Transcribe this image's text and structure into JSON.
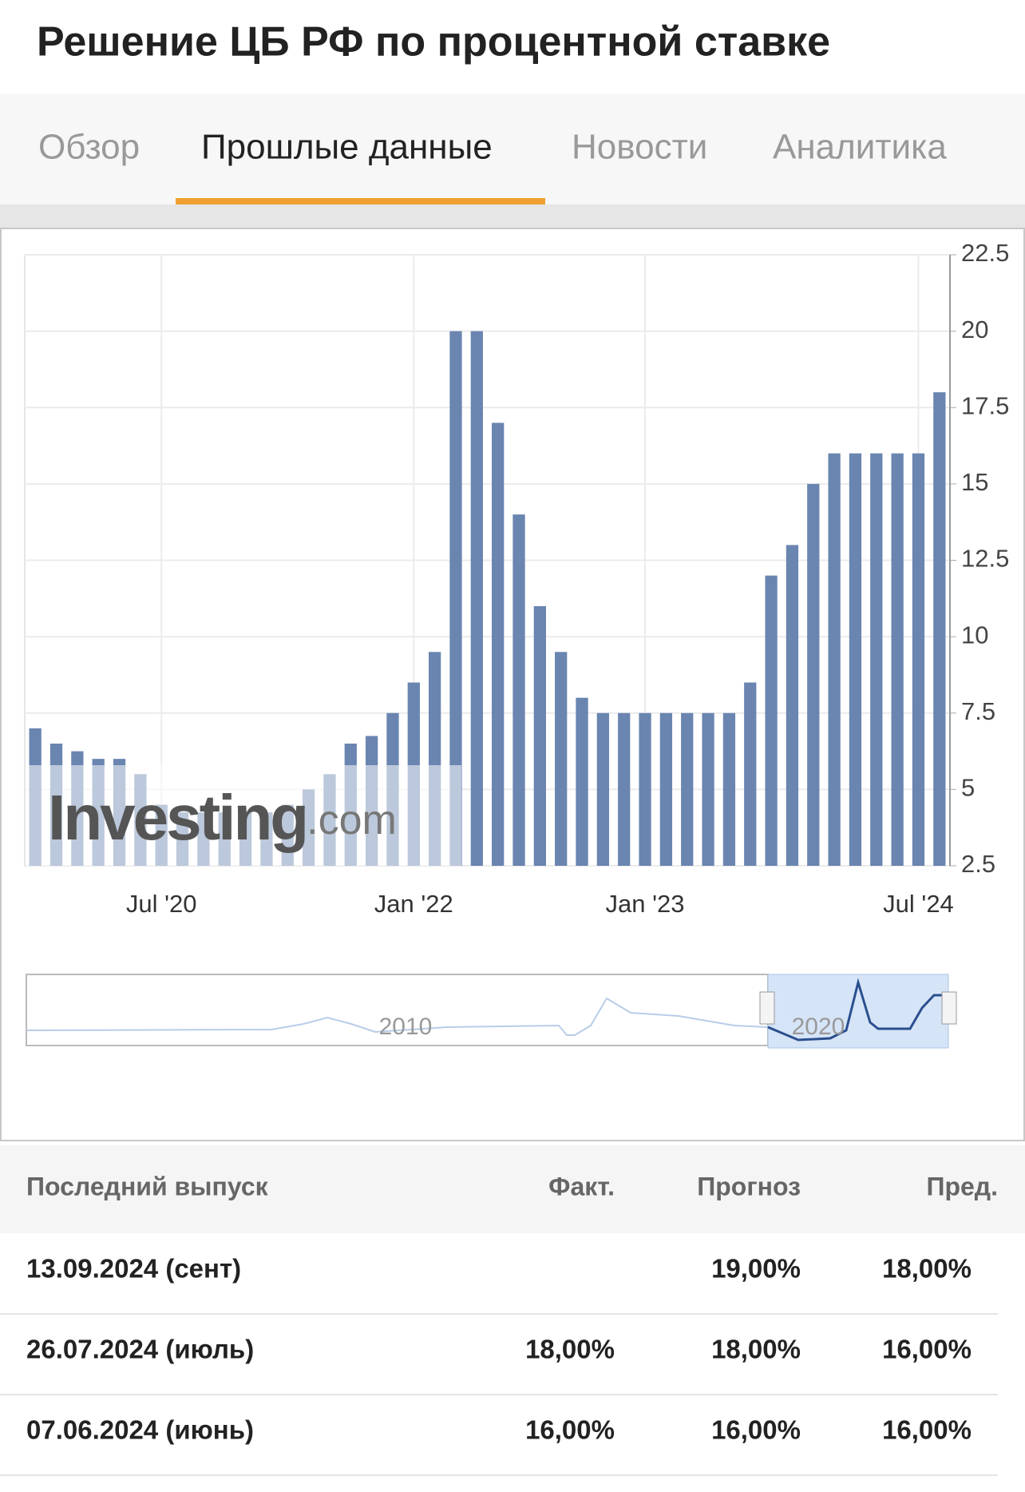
{
  "header": {
    "title": "Решение ЦБ РФ по процентной ставке"
  },
  "tabs": [
    "Обзор",
    "Прошлые данные",
    "Новости",
    "Аналитика"
  ],
  "chart_data": {
    "type": "bar",
    "color": "#6a85b0",
    "categories": [
      null,
      null,
      null,
      null,
      null,
      null,
      "Jul '20",
      null,
      null,
      null,
      null,
      null,
      null,
      null,
      null,
      null,
      null,
      null,
      "Jan '22",
      null,
      null,
      null,
      null,
      null,
      null,
      null,
      null,
      null,
      null,
      "Jan '23",
      null,
      null,
      null,
      null,
      null,
      null,
      null,
      null,
      null,
      null,
      null,
      null,
      "Jul '24",
      null
    ],
    "values": [
      7,
      6.5,
      6.25,
      6,
      6,
      5.5,
      4.5,
      4.25,
      4.25,
      4.25,
      4.25,
      4.25,
      4.5,
      5,
      5.5,
      6.5,
      6.75,
      7.5,
      8.5,
      9.5,
      20,
      20,
      17,
      14,
      11,
      9.5,
      8,
      7.5,
      7.5,
      7.5,
      7.5,
      7.5,
      7.5,
      7.5,
      8.5,
      12,
      13,
      15,
      16,
      16,
      16,
      16,
      16,
      18
    ],
    "ylim": [
      2.5,
      22.5
    ],
    "yticks": [
      2.5,
      5,
      7.5,
      10,
      12.5,
      15,
      17.5,
      20,
      22.5
    ],
    "grid": true,
    "watermark": [
      "Investing",
      ".com"
    ],
    "navigator_labels": [
      "2010",
      "2020"
    ]
  },
  "table": {
    "header": [
      "Последний выпуск",
      "Факт.",
      "Прогноз",
      "Пред."
    ],
    "rows": [
      [
        "13.09.2024 (сент)",
        null,
        "19,00%",
        "18,00%"
      ],
      [
        "26.07.2024 (июль)",
        "18,00%",
        "18,00%",
        "16,00%"
      ],
      [
        "07.06.2024 (июнь)",
        "16,00%",
        "16,00%",
        "16,00%"
      ]
    ]
  }
}
